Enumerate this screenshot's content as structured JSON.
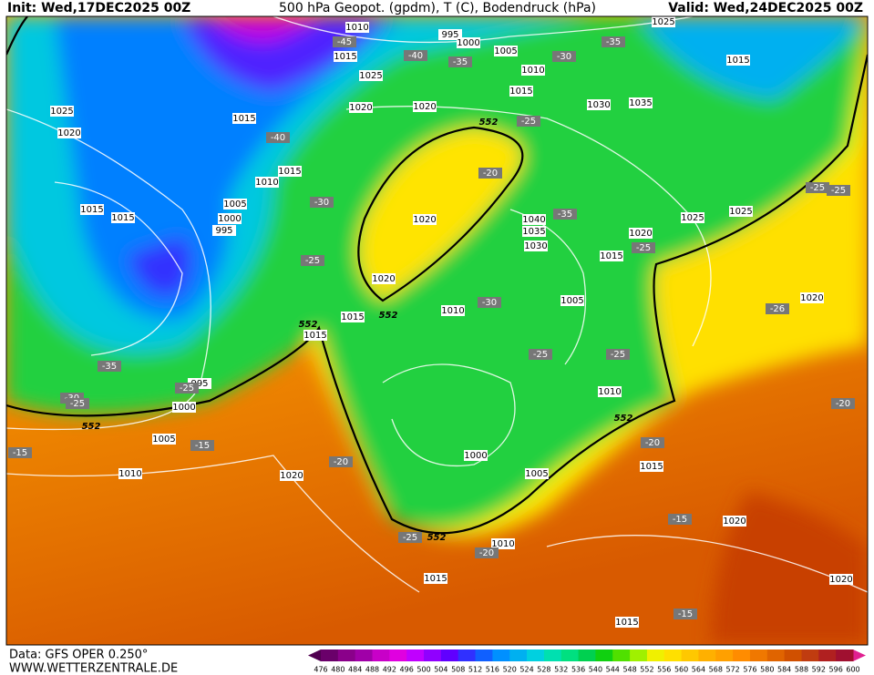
{
  "header": {
    "init": "Init: Wed,17DEC2025 00Z",
    "title": "500 hPa Geopot. (gpdm), T (C), Bodendruck (hPa)",
    "valid": "Valid: Wed,24DEC2025 00Z"
  },
  "footer": {
    "data_source": "Data: GFS OPER 0.250°",
    "website": "WWW.WETTERZENTRALE.DE"
  },
  "map": {
    "isobar_labels": [
      1010,
      995,
      1000,
      1005,
      1025,
      1015,
      1010,
      1025,
      1015,
      1015,
      1025,
      1020,
      1020,
      1030,
      1035,
      1015,
      1020,
      1015,
      1010,
      1005,
      1015,
      1015,
      1000,
      995,
      1020,
      1040,
      1035,
      1030,
      1020,
      1025,
      1025,
      1015,
      1020,
      1005,
      1010,
      1015,
      1015,
      1020,
      995,
      1000,
      1010,
      1005,
      1000,
      1010,
      1020,
      1005,
      1015,
      1020,
      1010,
      1015,
      1020,
      1015
    ],
    "temperature_labels": [
      -45,
      -40,
      -35,
      -30,
      -35,
      -25,
      -40,
      -20,
      -30,
      -35,
      -25,
      -25,
      -30,
      -25,
      -25,
      -26,
      -25,
      -25,
      -35,
      -30,
      -25,
      -25,
      -15,
      -15,
      -20,
      -20,
      -20,
      -15,
      -25,
      -20,
      -15
    ],
    "height_labels": [
      552,
      552,
      552,
      552,
      552,
      552
    ]
  },
  "colorbar": {
    "labels": [
      476,
      480,
      484,
      488,
      492,
      496,
      500,
      504,
      508,
      512,
      516,
      520,
      524,
      528,
      532,
      536,
      540,
      544,
      548,
      552,
      556,
      560,
      564,
      568,
      572,
      576,
      580,
      584,
      588,
      592,
      596,
      600
    ],
    "colors": [
      "#6a006a",
      "#8a008a",
      "#a000a8",
      "#c800c8",
      "#e000e0",
      "#c000ff",
      "#9000ff",
      "#6000ff",
      "#3030ff",
      "#1060ff",
      "#0090ff",
      "#00b0f0",
      "#00d0e0",
      "#00e0b0",
      "#00e080",
      "#00d050",
      "#10d010",
      "#50e000",
      "#a0f000",
      "#f0f000",
      "#ffe000",
      "#ffc800",
      "#ffb000",
      "#ffa000",
      "#ff8c00",
      "#f07800",
      "#e06400",
      "#d05000",
      "#c03c10",
      "#b02020",
      "#a01030"
    ]
  }
}
